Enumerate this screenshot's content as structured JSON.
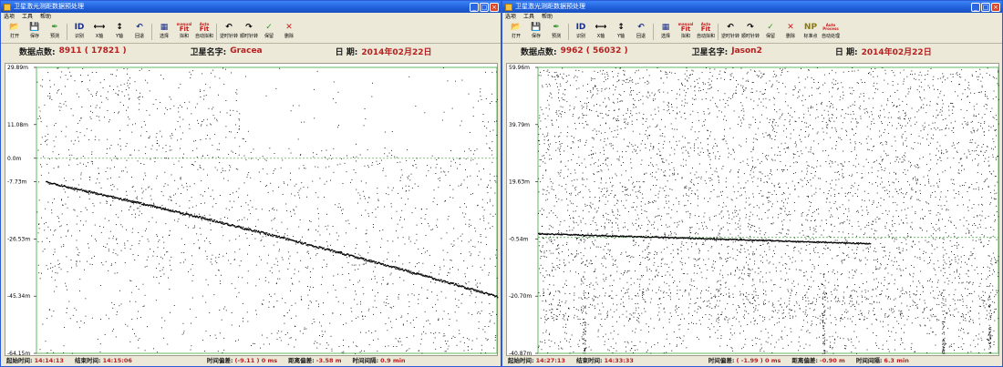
{
  "windows": [
    {
      "title": "卫星激光测距数据预处理",
      "menus": [
        "选项",
        "工具",
        "帮助"
      ],
      "toolbar": [
        {
          "icon": "folder-icon",
          "glyph": "📂",
          "label": "打开",
          "cls": "olive"
        },
        {
          "icon": "floppy-disk-icon",
          "glyph": "💾",
          "label": "保存",
          "cls": "navy"
        },
        {
          "icon": "feather-icon",
          "glyph": "✒",
          "label": "预测",
          "cls": "green"
        },
        {
          "icon": "id-icon",
          "glyph": "ID",
          "label": "识别",
          "cls": "navy"
        },
        {
          "icon": "horizontal-stretch-icon",
          "glyph": "⟷",
          "label": "X轴",
          "cls": ""
        },
        {
          "icon": "vertical-stretch-icon",
          "glyph": "↕",
          "label": "Y轴",
          "cls": ""
        },
        {
          "icon": "undo-icon",
          "glyph": "↶",
          "label": "回退",
          "cls": "navy"
        },
        {
          "icon": "select-grid-icon",
          "glyph": "▦",
          "label": "选择",
          "cls": "navy"
        },
        {
          "icon": "manual-fit-icon",
          "glyph": "Fit",
          "top": "manual",
          "label": "拟和",
          "cls": "red"
        },
        {
          "icon": "auto-fit-icon",
          "glyph": "Fit",
          "top": "Auto",
          "label": "自动拟和",
          "cls": "red"
        },
        {
          "icon": "rotate-ccw-icon",
          "glyph": "↶",
          "label": "逆时针转",
          "cls": ""
        },
        {
          "icon": "rotate-cw-icon",
          "glyph": "↷",
          "label": "顺时针转",
          "cls": ""
        },
        {
          "icon": "check-icon",
          "glyph": "✓",
          "label": "保留",
          "cls": "green"
        },
        {
          "icon": "delete-x-icon",
          "glyph": "✕",
          "label": "删除",
          "cls": "red"
        }
      ],
      "info": {
        "points_label": "数据点数:",
        "points_value": "8911 ( 17821 )",
        "sat_label": "卫星名字:",
        "sat_value": "Gracea",
        "date_label": "日   期:",
        "date_value": "2014年02月22日"
      },
      "yticks": [
        "29.89m",
        "11.08m",
        "0.0m",
        "-7.73m",
        "-26.53m",
        "-45.34m",
        "-64.15m"
      ],
      "status": {
        "start_label": "起始时间:",
        "start_value": "14:14:13",
        "end_label": "结束时间:",
        "end_value": "14:15:06",
        "tb_label": "时间偏差:",
        "tb_value": "(-9.11 ) 0 ms",
        "rb_label": "距离偏差:",
        "rb_value": "-3.58 m",
        "ti_label": "时间间隔:",
        "ti_value": "0.9 min"
      },
      "chart_data": {
        "type": "scatter",
        "ylim": [
          -64.15,
          29.89
        ],
        "zero_line": 0,
        "trend": {
          "start_y": -7.73,
          "end_y": -45.34,
          "x_start": 0.02,
          "x_end": 1.0
        },
        "noise_bottom_right_start": 0.45,
        "noise_points": 2600,
        "trend_points": 700
      }
    },
    {
      "title": "卫星激光测距数据预处理",
      "menus": [
        "选项",
        "工具",
        "帮助"
      ],
      "toolbar": [
        {
          "icon": "folder-icon",
          "glyph": "📂",
          "label": "打开",
          "cls": "olive"
        },
        {
          "icon": "floppy-disk-icon",
          "glyph": "💾",
          "label": "保存",
          "cls": "navy"
        },
        {
          "icon": "feather-icon",
          "glyph": "✒",
          "label": "预测",
          "cls": "green"
        },
        {
          "icon": "id-icon",
          "glyph": "ID",
          "label": "识别",
          "cls": "navy"
        },
        {
          "icon": "horizontal-stretch-icon",
          "glyph": "⟷",
          "label": "X轴",
          "cls": ""
        },
        {
          "icon": "vertical-stretch-icon",
          "glyph": "↕",
          "label": "Y轴",
          "cls": ""
        },
        {
          "icon": "undo-icon",
          "glyph": "↶",
          "label": "回退",
          "cls": "navy"
        },
        {
          "icon": "select-grid-icon",
          "glyph": "▦",
          "label": "选择",
          "cls": "navy"
        },
        {
          "icon": "manual-fit-icon",
          "glyph": "Fit",
          "top": "manual",
          "label": "拟和",
          "cls": "red"
        },
        {
          "icon": "auto-fit-icon",
          "glyph": "Fit",
          "top": "Auto",
          "label": "自动拟和",
          "cls": "red"
        },
        {
          "icon": "rotate-ccw-icon",
          "glyph": "↶",
          "label": "逆时针转",
          "cls": ""
        },
        {
          "icon": "rotate-cw-icon",
          "glyph": "↷",
          "label": "顺时针转",
          "cls": ""
        },
        {
          "icon": "check-icon",
          "glyph": "✓",
          "label": "保留",
          "cls": "green"
        },
        {
          "icon": "delete-x-icon",
          "glyph": "✕",
          "label": "删除",
          "cls": "red"
        },
        {
          "icon": "normal-point-icon",
          "glyph": "NP",
          "label": "标准点",
          "cls": "olive"
        },
        {
          "icon": "auto-process-icon",
          "glyph": "Process",
          "top": "Auto",
          "label": "自动处理",
          "cls": "red"
        }
      ],
      "info": {
        "points_label": "数据点数:",
        "points_value": "9962 ( 56032 )",
        "sat_label": "卫星名字:",
        "sat_value": "Jason2",
        "date_label": "日   期:",
        "date_value": "2014年02月22日"
      },
      "yticks": [
        "59.96m",
        "39.79m",
        "19.63m",
        "-0.54m",
        "-20.70m",
        "-40.87m"
      ],
      "status": {
        "start_label": "起始时间:",
        "start_value": "14:27:13",
        "end_label": "结束时间:",
        "end_value": "14:33:33",
        "tb_label": "时间偏差:",
        "tb_value": "( -1.99 ) 0 ms",
        "rb_label": "距离偏差:",
        "rb_value": "-0.90 m",
        "ti_label": "时间间隔:",
        "ti_value": "6.3 min"
      },
      "chart_data": {
        "type": "scatter",
        "ylim": [
          -40.87,
          59.96
        ],
        "zero_line": 0,
        "trend": {
          "start_y": 1.5,
          "end_y": -2.0,
          "x_start": 0.0,
          "x_end": 0.72
        },
        "noise_points": 5200,
        "trend_points": 450
      }
    }
  ]
}
